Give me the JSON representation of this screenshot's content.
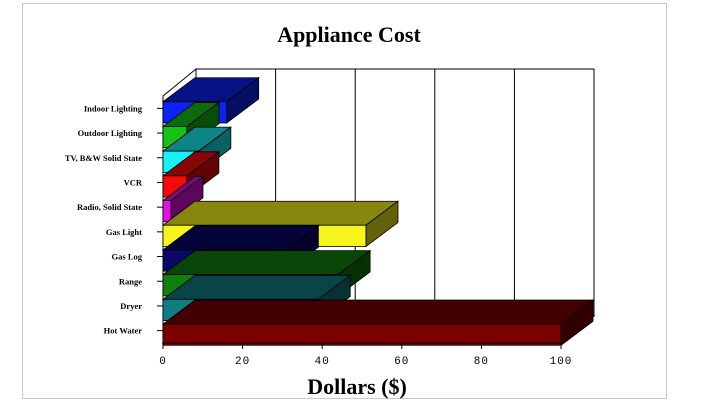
{
  "chart_data": {
    "type": "bar",
    "orientation": "horizontal",
    "style": "3d",
    "title": "Appliance Cost",
    "xlabel": "Dollars ($)",
    "ylabel": "",
    "xlim": [
      0,
      100
    ],
    "xticks": [
      "0",
      "20",
      "40",
      "60",
      "80",
      "100"
    ],
    "grid": true,
    "categories": [
      "Indoor Lighting",
      "Outdoor Lighting",
      "TV, B&W Solid State",
      "VCR",
      "Radio, Solid State",
      "Gas Light",
      "Gas Log",
      "Range",
      "Dryer",
      "Hot Water"
    ],
    "values": [
      16,
      6,
      9,
      6,
      2,
      51,
      31,
      44,
      39,
      100
    ],
    "colors": [
      "#0b23f5",
      "#15c215",
      "#19f0f4",
      "#f50a0a",
      "#e60fe6",
      "#f5f51b",
      "#08086b",
      "#0f7f0f",
      "#117d83",
      "#7a0000"
    ]
  }
}
